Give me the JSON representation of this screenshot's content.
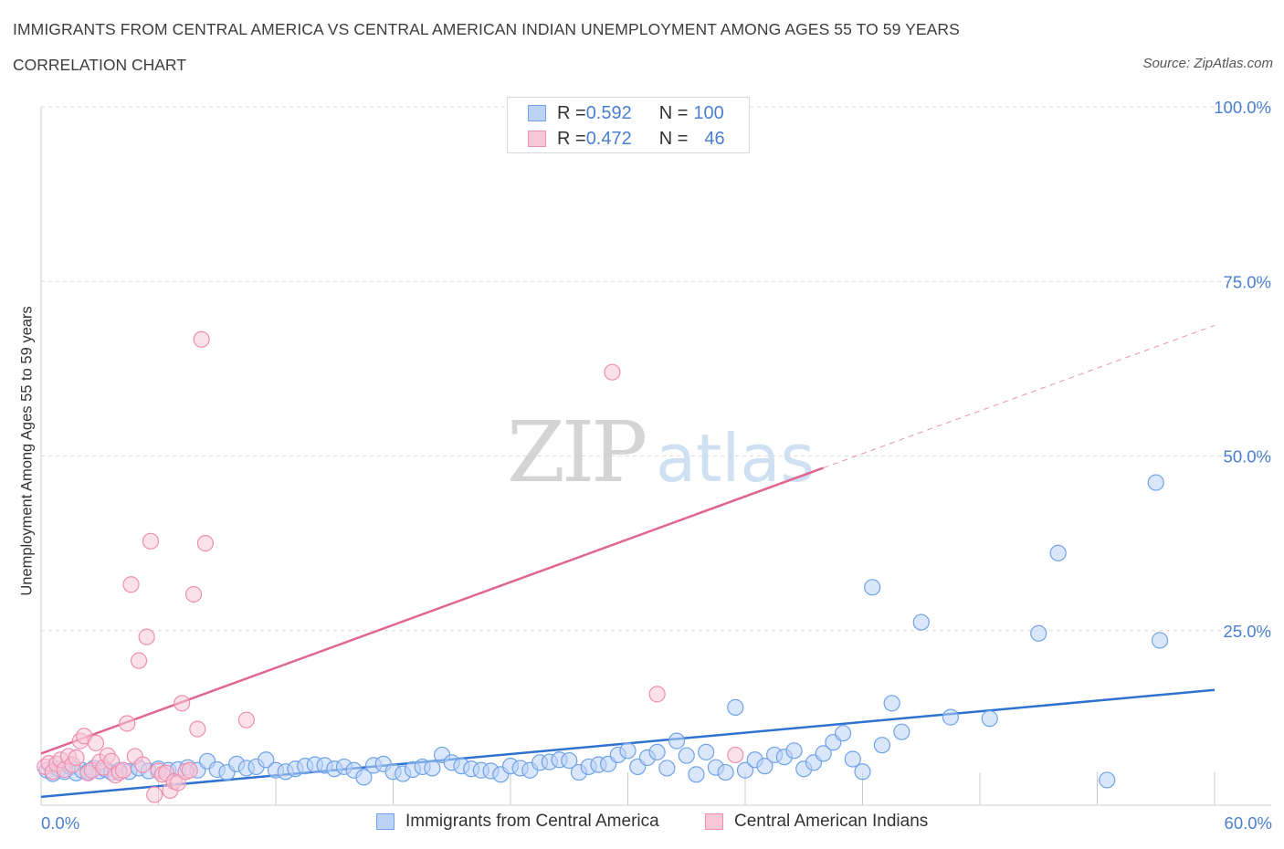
{
  "header": {
    "title": "IMMIGRANTS FROM CENTRAL AMERICA VS CENTRAL AMERICAN INDIAN UNEMPLOYMENT AMONG AGES 55 TO 59 YEARS",
    "subtitle": "CORRELATION CHART",
    "source": "Source: ZipAtlas.com"
  },
  "watermark": {
    "zip": "ZIP",
    "atlas": "atlas"
  },
  "legend_top": {
    "rows": [
      {
        "r_label": "R = ",
        "r_value": "0.592",
        "n_label": "N = ",
        "n_value": "100",
        "color": "#6fa2e8",
        "fill": "#bcd3f5"
      },
      {
        "r_label": "R = ",
        "r_value": "0.472",
        "n_label": "N = ",
        "n_value": "46",
        "color": "#ef8fb0",
        "fill": "#f8c8d8"
      }
    ]
  },
  "chart_data": {
    "type": "scatter",
    "ylabel": "Unemployment Among Ages 55 to 59 years",
    "xlim": [
      0,
      60
    ],
    "ylim": [
      0,
      100
    ],
    "x_tick_labels": [
      "0.0%",
      "60.0%"
    ],
    "y_tick_labels": [
      "25.0%",
      "50.0%",
      "75.0%",
      "100.0%"
    ],
    "y_ticks": [
      25,
      50,
      75,
      100
    ],
    "x_minor_ticks": [
      0,
      6,
      12,
      18,
      24,
      30,
      36,
      42,
      48,
      54,
      60
    ],
    "grid": true,
    "series": [
      {
        "name": "Immigrants from Central America",
        "color": "#6fa2e8",
        "fill": "#bcd3f5",
        "line_color": "#2f72d0",
        "trend": {
          "x0": 0,
          "y0": 1.2,
          "x1": 60,
          "y1": 16.5
        },
        "points": [
          [
            0.3,
            5
          ],
          [
            0.6,
            4.5
          ],
          [
            0.9,
            5.2
          ],
          [
            1.2,
            4.8
          ],
          [
            1.5,
            5.5
          ],
          [
            1.8,
            4.6
          ],
          [
            2.1,
            5
          ],
          [
            2.4,
            4.8
          ],
          [
            2.7,
            5.3
          ],
          [
            3.0,
            4.9
          ],
          [
            3.3,
            5.1
          ],
          [
            3.6,
            4.7
          ],
          [
            4.0,
            5
          ],
          [
            4.5,
            4.8
          ],
          [
            5.0,
            5.3
          ],
          [
            5.5,
            4.9
          ],
          [
            6.0,
            5.2
          ],
          [
            6.5,
            5
          ],
          [
            7.0,
            5.1
          ],
          [
            7.5,
            5.4
          ],
          [
            8.0,
            5
          ],
          [
            8.5,
            6.3
          ],
          [
            9.0,
            5.1
          ],
          [
            9.5,
            4.7
          ],
          [
            10.0,
            5.9
          ],
          [
            10.5,
            5.3
          ],
          [
            11.0,
            5.5
          ],
          [
            11.5,
            6.5
          ],
          [
            12.0,
            5
          ],
          [
            12.5,
            4.8
          ],
          [
            13.0,
            5.2
          ],
          [
            13.5,
            5.6
          ],
          [
            14.0,
            5.8
          ],
          [
            14.5,
            5.7
          ],
          [
            15.0,
            5.2
          ],
          [
            15.5,
            5.5
          ],
          [
            16.0,
            5
          ],
          [
            16.5,
            4
          ],
          [
            17.0,
            5.7
          ],
          [
            17.5,
            5.9
          ],
          [
            18.0,
            4.8
          ],
          [
            18.5,
            4.5
          ],
          [
            19.0,
            5.1
          ],
          [
            19.5,
            5.5
          ],
          [
            20.0,
            5.3
          ],
          [
            20.5,
            7.2
          ],
          [
            21.0,
            6.1
          ],
          [
            21.5,
            5.6
          ],
          [
            22.0,
            5.2
          ],
          [
            22.5,
            5
          ],
          [
            23.0,
            4.9
          ],
          [
            23.5,
            4.4
          ],
          [
            24.0,
            5.6
          ],
          [
            24.5,
            5.3
          ],
          [
            25.0,
            5
          ],
          [
            25.5,
            6.1
          ],
          [
            26.0,
            6.2
          ],
          [
            26.5,
            6.5
          ],
          [
            27.0,
            6.4
          ],
          [
            27.5,
            4.7
          ],
          [
            28.0,
            5.5
          ],
          [
            28.5,
            5.8
          ],
          [
            29.0,
            5.9
          ],
          [
            29.5,
            7.2
          ],
          [
            30.0,
            7.8
          ],
          [
            30.5,
            5.5
          ],
          [
            31.0,
            6.8
          ],
          [
            31.5,
            7.6
          ],
          [
            32.0,
            5.3
          ],
          [
            32.5,
            9.2
          ],
          [
            33.0,
            7.1
          ],
          [
            33.5,
            4.4
          ],
          [
            34.0,
            7.6
          ],
          [
            34.5,
            5.4
          ],
          [
            35.0,
            4.7
          ],
          [
            35.5,
            14
          ],
          [
            36.0,
            5
          ],
          [
            36.5,
            6.5
          ],
          [
            37.0,
            5.6
          ],
          [
            37.5,
            7.2
          ],
          [
            38.0,
            6.9
          ],
          [
            38.5,
            7.8
          ],
          [
            39.0,
            5.2
          ],
          [
            39.5,
            6.1
          ],
          [
            40.0,
            7.4
          ],
          [
            40.5,
            9
          ],
          [
            41.0,
            10.3
          ],
          [
            41.5,
            6.6
          ],
          [
            42.0,
            4.8
          ],
          [
            42.5,
            31.2
          ],
          [
            43.0,
            8.6
          ],
          [
            43.5,
            14.6
          ],
          [
            44.0,
            10.5
          ],
          [
            45.0,
            26.2
          ],
          [
            46.5,
            12.6
          ],
          [
            48.5,
            12.4
          ],
          [
            51.0,
            24.6
          ],
          [
            52.0,
            36.1
          ],
          [
            54.5,
            3.6
          ],
          [
            57.0,
            46.2
          ],
          [
            57.2,
            23.6
          ]
        ]
      },
      {
        "name": "Central American Indians",
        "color": "#ef8fb0",
        "fill": "#f8c8d8",
        "line_color": "#e06690",
        "trend": {
          "x0": 0,
          "y0": 7.4,
          "x1": 40,
          "y1": 48.3
        },
        "trend_extension": {
          "x0": 40,
          "y0": 48.3,
          "x1": 60,
          "y1": 68.7
        },
        "points": [
          [
            0.2,
            5.5
          ],
          [
            0.4,
            6
          ],
          [
            0.6,
            4.8
          ],
          [
            0.8,
            5.9
          ],
          [
            1.0,
            6.5
          ],
          [
            1.2,
            5.1
          ],
          [
            1.4,
            7
          ],
          [
            1.6,
            5.8
          ],
          [
            1.8,
            6.8
          ],
          [
            2.0,
            9.2
          ],
          [
            2.2,
            9.9
          ],
          [
            2.4,
            4.6
          ],
          [
            2.6,
            5
          ],
          [
            2.8,
            8.9
          ],
          [
            3.0,
            6.2
          ],
          [
            3.2,
            5.4
          ],
          [
            3.4,
            7.1
          ],
          [
            3.6,
            6.3
          ],
          [
            3.8,
            4.3
          ],
          [
            4.0,
            4.7
          ],
          [
            4.2,
            5
          ],
          [
            4.4,
            11.7
          ],
          [
            4.6,
            31.6
          ],
          [
            4.8,
            7
          ],
          [
            5.0,
            20.7
          ],
          [
            5.2,
            5.8
          ],
          [
            5.4,
            24.1
          ],
          [
            5.6,
            37.8
          ],
          [
            5.8,
            1.5
          ],
          [
            6.0,
            4.9
          ],
          [
            6.2,
            4.4
          ],
          [
            6.4,
            4.6
          ],
          [
            6.6,
            2.1
          ],
          [
            6.8,
            3.4
          ],
          [
            7.0,
            3.2
          ],
          [
            7.2,
            14.6
          ],
          [
            7.4,
            4.8
          ],
          [
            7.6,
            5
          ],
          [
            7.8,
            30.2
          ],
          [
            8.0,
            10.9
          ],
          [
            8.2,
            66.7
          ],
          [
            8.4,
            37.5
          ],
          [
            10.5,
            12.2
          ],
          [
            29.2,
            62
          ],
          [
            31.5,
            15.9
          ],
          [
            35.5,
            7.2
          ]
        ]
      }
    ]
  },
  "legend_bottom": {
    "items": [
      {
        "label": "Immigrants from Central America",
        "color": "#6fa2e8",
        "fill": "#bcd3f5"
      },
      {
        "label": "Central American Indians",
        "color": "#ef8fb0",
        "fill": "#f8c8d8"
      }
    ]
  }
}
